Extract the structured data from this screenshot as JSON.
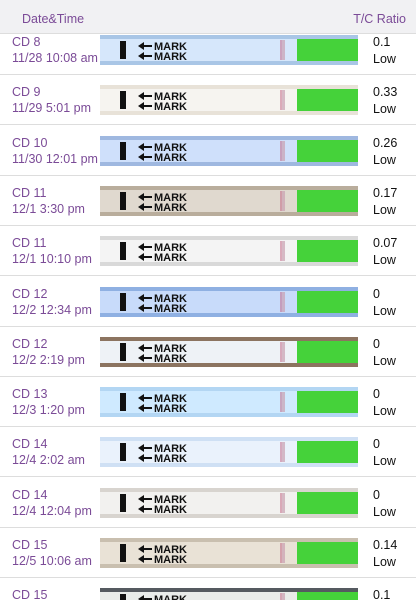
{
  "header": {
    "left": "Date&Time",
    "right": "T/C Ratio"
  },
  "strip_label": "MARK",
  "rows": [
    {
      "cycle_day": "CD 8",
      "datetime": "11/28 10:08 am",
      "ratio": "0.1",
      "level": "Low"
    },
    {
      "cycle_day": "CD 9",
      "datetime": "11/29 5:01 pm",
      "ratio": "0.33",
      "level": "Low"
    },
    {
      "cycle_day": "CD 10",
      "datetime": "11/30 12:01 pm",
      "ratio": "0.26",
      "level": "Low"
    },
    {
      "cycle_day": "CD 11",
      "datetime": "12/1 3:30 pm",
      "ratio": "0.17",
      "level": "Low"
    },
    {
      "cycle_day": "CD 11",
      "datetime": "12/1 10:10 pm",
      "ratio": "0.07",
      "level": "Low"
    },
    {
      "cycle_day": "CD 12",
      "datetime": "12/2 12:34 pm",
      "ratio": "0",
      "level": "Low"
    },
    {
      "cycle_day": "CD 12",
      "datetime": "12/2 2:19 pm",
      "ratio": "0",
      "level": "Low"
    },
    {
      "cycle_day": "CD 13",
      "datetime": "12/3 1:20 pm",
      "ratio": "0",
      "level": "Low"
    },
    {
      "cycle_day": "CD 14",
      "datetime": "12/4 2:02 am",
      "ratio": "0",
      "level": "Low"
    },
    {
      "cycle_day": "CD 14",
      "datetime": "12/4 12:04 pm",
      "ratio": "0",
      "level": "Low"
    },
    {
      "cycle_day": "CD 15",
      "datetime": "12/5 10:06 am",
      "ratio": "0.14",
      "level": "Low"
    },
    {
      "cycle_day": "CD 15",
      "datetime": "",
      "ratio": "0.1",
      "level": ""
    }
  ]
}
